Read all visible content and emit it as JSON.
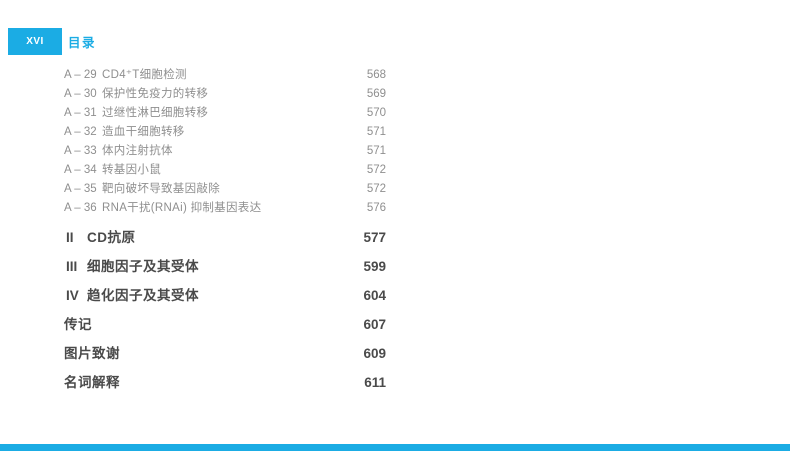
{
  "colors": {
    "accent": "#1BACE4",
    "item_text": "#8F8F8F",
    "heading_text": "#4A4A4A"
  },
  "page": {
    "folio": "XVI",
    "header_title": "目录"
  },
  "toc": {
    "appendix_items": [
      {
        "label": "A – 29",
        "title": "CD4⁺T细胞检测",
        "page": "568"
      },
      {
        "label": "A – 30",
        "title": "保护性免疫力的转移",
        "page": "569"
      },
      {
        "label": "A – 31",
        "title": "过继性淋巴细胞转移",
        "page": "570"
      },
      {
        "label": "A – 32",
        "title": "造血干细胞转移",
        "page": "571"
      },
      {
        "label": "A – 33",
        "title": "体内注射抗体",
        "page": "571"
      },
      {
        "label": "A – 34",
        "title": "转基因小鼠",
        "page": "572"
      },
      {
        "label": "A – 35",
        "title": "靶向破坏导致基因敲除",
        "page": "572"
      },
      {
        "label": "A – 36",
        "title": "RNA干扰(RNAi) 抑制基因表达",
        "page": "576"
      }
    ],
    "sections": [
      {
        "numeral": "II",
        "title": "CD抗原",
        "page": "577"
      },
      {
        "numeral": "III",
        "title": "细胞因子及其受体",
        "page": "599"
      },
      {
        "numeral": "IV",
        "title": "趋化因子及其受体",
        "page": "604"
      },
      {
        "numeral": "",
        "title": "传记",
        "page": "607"
      },
      {
        "numeral": "",
        "title": "图片致谢",
        "page": "609"
      },
      {
        "numeral": "",
        "title": "名词解释",
        "page": "611"
      }
    ]
  }
}
